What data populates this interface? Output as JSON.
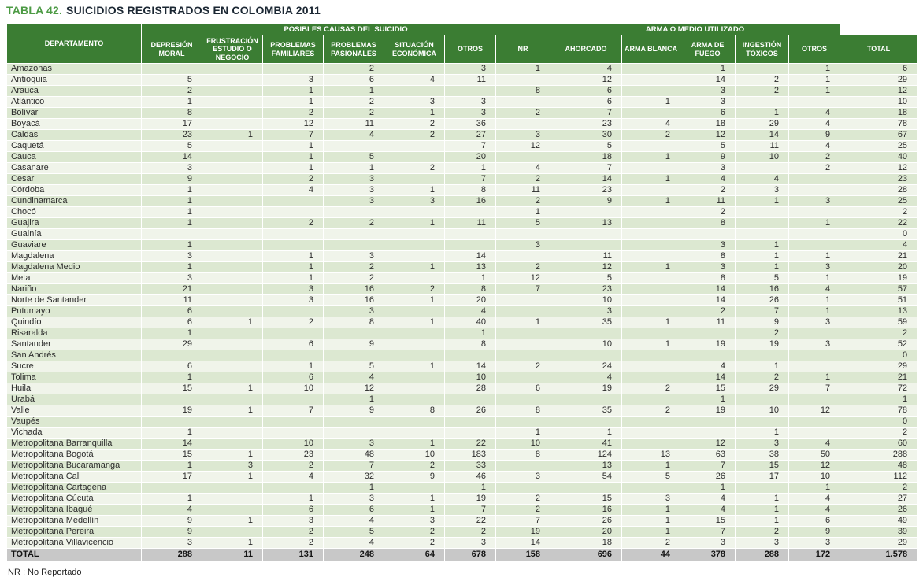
{
  "title": {
    "prefix": "TABLA 42.",
    "text": "SUICIDIOS REGISTRADOS EN COLOMBIA 2011"
  },
  "footnote": "NR : No Reportado",
  "colors": {
    "header_green": "#3b7d33",
    "title_green": "#4c9a44",
    "row_green": "#dce8d1",
    "row_light": "#f0f4ea",
    "total_gray": "#c8c8c8"
  },
  "table": {
    "groups": [
      "POSIBLES CAUSAS DEL SUICIDIO",
      "ARMA O MEDIO UTILIZADO"
    ],
    "columns": [
      "DEPARTAMENTO",
      "DEPRESIÓN MORAL",
      "FRUSTRACIÓN ESTUDIO O NEGOCIO",
      "PROBLEMAS FAMILIARES",
      "PROBLEMAS PASIONALES",
      "SITUACIÓN ECONÓMICA",
      "OTROS",
      "NR",
      "AHORCADO",
      "ARMA BLANCA",
      "ARMA DE FUEGO",
      "INGESTIÓN TÓXICOS",
      "OTROS",
      "TOTAL"
    ],
    "rows": [
      {
        "departamento": "Amazonas",
        "values": [
          "",
          "",
          "",
          "2",
          "",
          "3",
          "1",
          "4",
          "",
          "1",
          "",
          "1",
          "6"
        ]
      },
      {
        "departamento": "Antioquia",
        "values": [
          "5",
          "",
          "3",
          "6",
          "4",
          "11",
          "",
          "12",
          "",
          "14",
          "2",
          "1",
          "29"
        ]
      },
      {
        "departamento": "Arauca",
        "values": [
          "2",
          "",
          "1",
          "1",
          "",
          "",
          "8",
          "6",
          "",
          "3",
          "2",
          "1",
          "12"
        ]
      },
      {
        "departamento": "Atlántico",
        "values": [
          "1",
          "",
          "1",
          "2",
          "3",
          "3",
          "",
          "6",
          "1",
          "3",
          "",
          "",
          "10"
        ]
      },
      {
        "departamento": "Bolívar",
        "values": [
          "8",
          "",
          "2",
          "2",
          "1",
          "3",
          "2",
          "7",
          "",
          "6",
          "1",
          "4",
          "18"
        ]
      },
      {
        "departamento": "Boyacá",
        "values": [
          "17",
          "",
          "12",
          "11",
          "2",
          "36",
          "",
          "23",
          "4",
          "18",
          "29",
          "4",
          "78"
        ]
      },
      {
        "departamento": "Caldas",
        "values": [
          "23",
          "1",
          "7",
          "4",
          "2",
          "27",
          "3",
          "30",
          "2",
          "12",
          "14",
          "9",
          "67"
        ]
      },
      {
        "departamento": "Caquetá",
        "values": [
          "5",
          "",
          "1",
          "",
          "",
          "7",
          "12",
          "5",
          "",
          "5",
          "11",
          "4",
          "25"
        ]
      },
      {
        "departamento": "Cauca",
        "values": [
          "14",
          "",
          "1",
          "5",
          "",
          "20",
          "",
          "18",
          "1",
          "9",
          "10",
          "2",
          "40"
        ]
      },
      {
        "departamento": "Casanare",
        "values": [
          "3",
          "",
          "1",
          "1",
          "2",
          "1",
          "4",
          "7",
          "",
          "3",
          "",
          "2",
          "12"
        ]
      },
      {
        "departamento": "Cesar",
        "values": [
          "9",
          "",
          "2",
          "3",
          "",
          "7",
          "2",
          "14",
          "1",
          "4",
          "4",
          "",
          "23"
        ]
      },
      {
        "departamento": "Córdoba",
        "values": [
          "1",
          "",
          "4",
          "3",
          "1",
          "8",
          "11",
          "23",
          "",
          "2",
          "3",
          "",
          "28"
        ]
      },
      {
        "departamento": "Cundinamarca",
        "values": [
          "1",
          "",
          "",
          "3",
          "3",
          "16",
          "2",
          "9",
          "1",
          "11",
          "1",
          "3",
          "25"
        ]
      },
      {
        "departamento": "Chocó",
        "values": [
          "1",
          "",
          "",
          "",
          "",
          "",
          "1",
          "",
          "",
          "2",
          "",
          "",
          "2"
        ]
      },
      {
        "departamento": "Guajira",
        "values": [
          "1",
          "",
          "2",
          "2",
          "1",
          "11",
          "5",
          "13",
          "",
          "8",
          "",
          "1",
          "22"
        ]
      },
      {
        "departamento": "Guainía",
        "values": [
          "",
          "",
          "",
          "",
          "",
          "",
          "",
          "",
          "",
          "",
          "",
          "",
          "0"
        ]
      },
      {
        "departamento": "Guaviare",
        "values": [
          "1",
          "",
          "",
          "",
          "",
          "",
          "3",
          "",
          "",
          "3",
          "1",
          "",
          "4"
        ]
      },
      {
        "departamento": "Magdalena",
        "values": [
          "3",
          "",
          "1",
          "3",
          "",
          "14",
          "",
          "11",
          "",
          "8",
          "1",
          "1",
          "21"
        ]
      },
      {
        "departamento": "Magdalena Medio",
        "values": [
          "1",
          "",
          "1",
          "2",
          "1",
          "13",
          "2",
          "12",
          "1",
          "3",
          "1",
          "3",
          "20"
        ]
      },
      {
        "departamento": "Meta",
        "values": [
          "3",
          "",
          "1",
          "2",
          "",
          "1",
          "12",
          "5",
          "",
          "8",
          "5",
          "1",
          "19"
        ]
      },
      {
        "departamento": "Nariño",
        "values": [
          "21",
          "",
          "3",
          "16",
          "2",
          "8",
          "7",
          "23",
          "",
          "14",
          "16",
          "4",
          "57"
        ]
      },
      {
        "departamento": "Norte de Santander",
        "values": [
          "11",
          "",
          "3",
          "16",
          "1",
          "20",
          "",
          "10",
          "",
          "14",
          "26",
          "1",
          "51"
        ]
      },
      {
        "departamento": "Putumayo",
        "values": [
          "6",
          "",
          "",
          "3",
          "",
          "4",
          "",
          "3",
          "",
          "2",
          "7",
          "1",
          "13"
        ]
      },
      {
        "departamento": "Quindío",
        "values": [
          "6",
          "1",
          "2",
          "8",
          "1",
          "40",
          "1",
          "35",
          "1",
          "11",
          "9",
          "3",
          "59"
        ]
      },
      {
        "departamento": "Risaralda",
        "values": [
          "1",
          "",
          "",
          "",
          "",
          "1",
          "",
          "",
          "",
          "",
          "2",
          "",
          "2"
        ]
      },
      {
        "departamento": "Santander",
        "values": [
          "29",
          "",
          "6",
          "9",
          "",
          "8",
          "",
          "10",
          "1",
          "19",
          "19",
          "3",
          "52"
        ]
      },
      {
        "departamento": "San Andrés",
        "values": [
          "",
          "",
          "",
          "",
          "",
          "",
          "",
          "",
          "",
          "",
          "",
          "",
          "0"
        ]
      },
      {
        "departamento": "Sucre",
        "values": [
          "6",
          "",
          "1",
          "5",
          "1",
          "14",
          "2",
          "24",
          "",
          "4",
          "1",
          "",
          "29"
        ]
      },
      {
        "departamento": "Tolima",
        "values": [
          "1",
          "",
          "6",
          "4",
          "",
          "10",
          "",
          "4",
          "",
          "14",
          "2",
          "1",
          "21"
        ]
      },
      {
        "departamento": "Huila",
        "values": [
          "15",
          "1",
          "10",
          "12",
          "",
          "28",
          "6",
          "19",
          "2",
          "15",
          "29",
          "7",
          "72"
        ]
      },
      {
        "departamento": "Urabá",
        "values": [
          "",
          "",
          "",
          "1",
          "",
          "",
          "",
          "",
          "",
          "1",
          "",
          "",
          "1"
        ]
      },
      {
        "departamento": "Valle",
        "values": [
          "19",
          "1",
          "7",
          "9",
          "8",
          "26",
          "8",
          "35",
          "2",
          "19",
          "10",
          "12",
          "78"
        ]
      },
      {
        "departamento": "Vaupés",
        "values": [
          "",
          "",
          "",
          "",
          "",
          "",
          "",
          "",
          "",
          "",
          "",
          "",
          "0"
        ]
      },
      {
        "departamento": "Vichada",
        "values": [
          "1",
          "",
          "",
          "",
          "",
          "",
          "1",
          "1",
          "",
          "",
          "1",
          "",
          "2"
        ]
      },
      {
        "departamento": "Metropolitana Barranquilla",
        "values": [
          "14",
          "",
          "10",
          "3",
          "1",
          "22",
          "10",
          "41",
          "",
          "12",
          "3",
          "4",
          "60"
        ]
      },
      {
        "departamento": "Metropolitana Bogotá",
        "values": [
          "15",
          "1",
          "23",
          "48",
          "10",
          "183",
          "8",
          "124",
          "13",
          "63",
          "38",
          "50",
          "288"
        ]
      },
      {
        "departamento": "Metropolitana Bucaramanga",
        "values": [
          "1",
          "3",
          "2",
          "7",
          "2",
          "33",
          "",
          "13",
          "1",
          "7",
          "15",
          "12",
          "48"
        ]
      },
      {
        "departamento": "Metropolitana Cali",
        "values": [
          "17",
          "1",
          "4",
          "32",
          "9",
          "46",
          "3",
          "54",
          "5",
          "26",
          "17",
          "10",
          "112"
        ]
      },
      {
        "departamento": "Metropolitana Cartagena",
        "values": [
          "",
          "",
          "",
          "1",
          "",
          "1",
          "",
          "",
          "",
          "1",
          "",
          "1",
          "2"
        ]
      },
      {
        "departamento": "Metropolitana Cúcuta",
        "values": [
          "1",
          "",
          "1",
          "3",
          "1",
          "19",
          "2",
          "15",
          "3",
          "4",
          "1",
          "4",
          "27"
        ]
      },
      {
        "departamento": "Metropolitana Ibagué",
        "values": [
          "4",
          "",
          "6",
          "6",
          "1",
          "7",
          "2",
          "16",
          "1",
          "4",
          "1",
          "4",
          "26"
        ]
      },
      {
        "departamento": "Metropolitana Medellín",
        "values": [
          "9",
          "1",
          "3",
          "4",
          "3",
          "22",
          "7",
          "26",
          "1",
          "15",
          "1",
          "6",
          "49"
        ]
      },
      {
        "departamento": "Metropolitana Pereira",
        "values": [
          "9",
          "",
          "2",
          "5",
          "2",
          "2",
          "19",
          "20",
          "1",
          "7",
          "2",
          "9",
          "39"
        ]
      },
      {
        "departamento": "Metropolitana Villavicencio",
        "values": [
          "3",
          "1",
          "2",
          "4",
          "2",
          "3",
          "14",
          "18",
          "2",
          "3",
          "3",
          "3",
          "29"
        ]
      }
    ],
    "total_row": {
      "label": "TOTAL",
      "values": [
        "288",
        "11",
        "131",
        "248",
        "64",
        "678",
        "158",
        "696",
        "44",
        "378",
        "288",
        "172",
        "1.578"
      ]
    }
  }
}
